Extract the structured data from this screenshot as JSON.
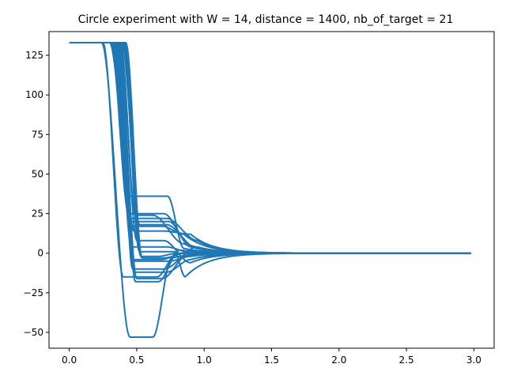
{
  "chart_data": {
    "type": "line",
    "title": "Circle experiment with W = 14, distance = 1400, nb_of_target = 21",
    "xlabel": "",
    "ylabel": "",
    "xlim": [
      -0.15,
      3.15
    ],
    "ylim": [
      -60,
      140
    ],
    "xticks": [
      0.0,
      0.5,
      1.0,
      1.5,
      2.0,
      2.5,
      3.0
    ],
    "xtick_labels": [
      "0.0",
      "0.5",
      "1.0",
      "1.5",
      "2.0",
      "2.5",
      "3.0"
    ],
    "yticks": [
      -50,
      -25,
      0,
      25,
      50,
      75,
      100,
      125
    ],
    "ytick_labels": [
      "−50",
      "−25",
      "0",
      "25",
      "50",
      "75",
      "100",
      "125"
    ],
    "grid": false,
    "line_color": "#1f77b4",
    "x_end": 2.98,
    "y_start": 133,
    "series": [
      {
        "drop_start": 0.24,
        "drop_end": 0.45,
        "plateau": -53,
        "plateau_end": 0.62,
        "settle_end": 0.76,
        "settle_value": -3
      },
      {
        "drop_start": 0.25,
        "drop_end": 0.4,
        "plateau": -15,
        "plateau_end": 0.65,
        "settle_end": 0.8,
        "settle_value": 0
      },
      {
        "drop_start": 0.3,
        "drop_end": 0.45,
        "plateau": 36,
        "plateau_end": 0.73,
        "settle_end": 0.85,
        "settle_value": 3
      },
      {
        "drop_start": 0.31,
        "drop_end": 0.44,
        "plateau": 25,
        "plateau_end": 0.7,
        "settle_end": 0.9,
        "settle_value": 5
      },
      {
        "drop_start": 0.32,
        "drop_end": 0.45,
        "plateau": 22,
        "plateau_end": 0.72,
        "settle_end": 0.95,
        "settle_value": 8
      },
      {
        "drop_start": 0.33,
        "drop_end": 0.46,
        "plateau": 20,
        "plateau_end": 0.74,
        "settle_end": 0.9,
        "settle_value": 4
      },
      {
        "drop_start": 0.33,
        "drop_end": 0.47,
        "plateau": 17,
        "plateau_end": 0.69,
        "settle_end": 0.85,
        "settle_value": 12
      },
      {
        "drop_start": 0.34,
        "drop_end": 0.48,
        "plateau": 14,
        "plateau_end": 0.7,
        "settle_end": 0.9,
        "settle_value": 12
      },
      {
        "drop_start": 0.34,
        "drop_end": 0.46,
        "plateau": 4,
        "plateau_end": 0.72,
        "settle_end": 0.88,
        "settle_value": 1
      },
      {
        "drop_start": 0.35,
        "drop_end": 0.47,
        "plateau": -4,
        "plateau_end": 0.68,
        "settle_end": 0.85,
        "settle_value": 0
      },
      {
        "drop_start": 0.35,
        "drop_end": 0.48,
        "plateau": -5,
        "plateau_end": 0.74,
        "settle_end": 0.9,
        "settle_value": -2
      },
      {
        "drop_start": 0.36,
        "drop_end": 0.47,
        "plateau": -10,
        "plateau_end": 0.7,
        "settle_end": 0.95,
        "settle_value": 4
      },
      {
        "drop_start": 0.36,
        "drop_end": 0.48,
        "plateau": -12,
        "plateau_end": 0.72,
        "settle_end": 0.9,
        "settle_value": -4
      },
      {
        "drop_start": 0.37,
        "drop_end": 0.5,
        "plateau": -16,
        "plateau_end": 0.69,
        "settle_end": 0.88,
        "settle_value": -1
      },
      {
        "drop_start": 0.37,
        "drop_end": 0.49,
        "plateau": -18,
        "plateau_end": 0.66,
        "settle_end": 0.82,
        "settle_value": 2
      },
      {
        "drop_start": 0.38,
        "drop_end": 0.5,
        "plateau": 8,
        "plateau_end": 0.7,
        "settle_end": 0.9,
        "settle_value": -6
      },
      {
        "drop_start": 0.38,
        "drop_end": 0.49,
        "plateau": 24,
        "plateau_end": 0.62,
        "settle_end": 0.85,
        "settle_value": 6
      },
      {
        "drop_start": 0.39,
        "drop_end": 0.52,
        "plateau": 18,
        "plateau_end": 0.72,
        "settle_end": 0.95,
        "settle_value": 3
      },
      {
        "drop_start": 0.4,
        "drop_end": 0.52,
        "plateau": 1,
        "plateau_end": 0.78,
        "settle_end": 0.86,
        "settle_value": -15
      },
      {
        "drop_start": 0.41,
        "drop_end": 0.53,
        "plateau": -2,
        "plateau_end": 0.66,
        "settle_end": 0.8,
        "settle_value": 0
      },
      {
        "drop_start": 0.42,
        "drop_end": 0.54,
        "plateau": -3,
        "plateau_end": 0.7,
        "settle_end": 0.9,
        "settle_value": 1
      }
    ]
  }
}
